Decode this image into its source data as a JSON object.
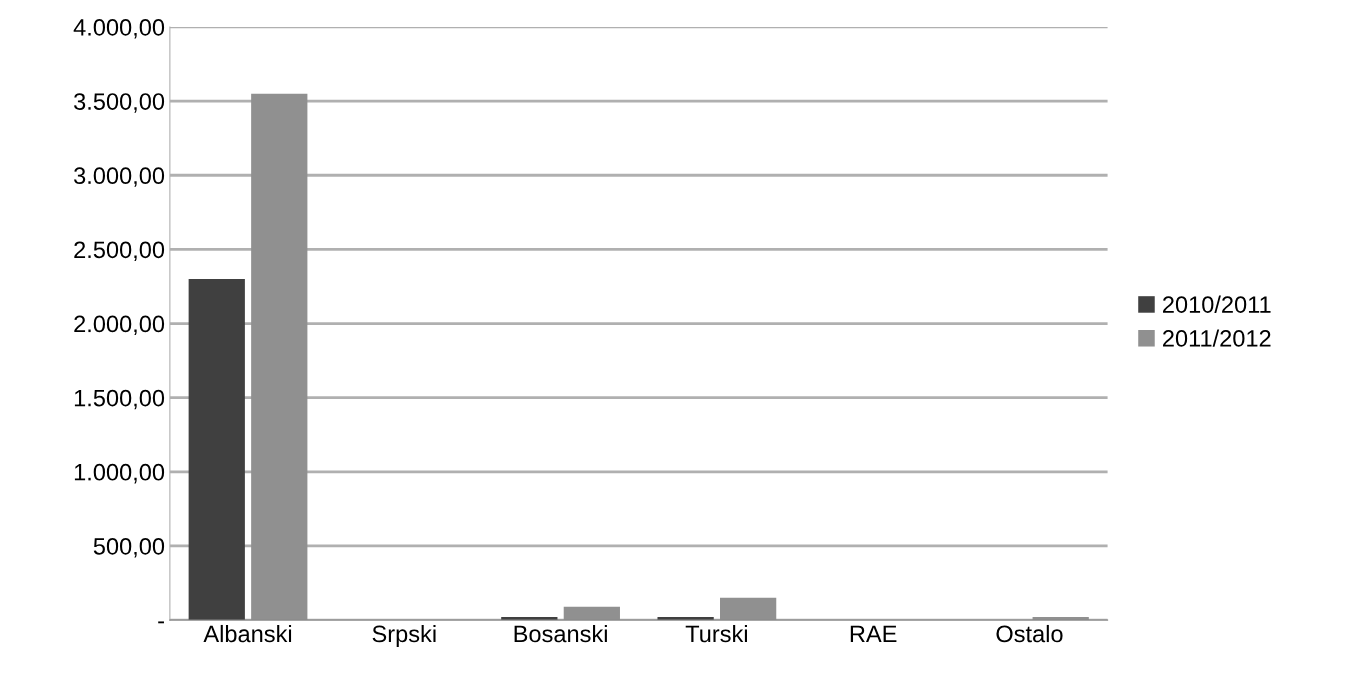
{
  "chart_data": {
    "type": "bar",
    "categories": [
      "Albanski",
      "Srpski",
      "Bosanski",
      "Turski",
      "RAE",
      "Ostalo"
    ],
    "series": [
      {
        "name": "2010/2011",
        "color": "#404040",
        "values": [
          2300,
          0,
          20,
          20,
          0,
          null
        ]
      },
      {
        "name": "2011/2012",
        "color": "#909090",
        "values": [
          3550,
          0,
          90,
          150,
          0,
          20
        ]
      }
    ],
    "ylim": [
      0,
      4000
    ],
    "yticks": [
      {
        "value": 0,
        "label": "-"
      },
      {
        "value": 500,
        "label": "500,00"
      },
      {
        "value": 1000,
        "label": "1.000,00"
      },
      {
        "value": 1500,
        "label": "1.500,00"
      },
      {
        "value": 2000,
        "label": "2.000,00"
      },
      {
        "value": 2500,
        "label": "2.500,00"
      },
      {
        "value": 3000,
        "label": "3.000,00"
      },
      {
        "value": 3500,
        "label": "3.500,00"
      },
      {
        "value": 4000,
        "label": "4.000,00"
      }
    ],
    "grid": "y",
    "legend": "right"
  }
}
